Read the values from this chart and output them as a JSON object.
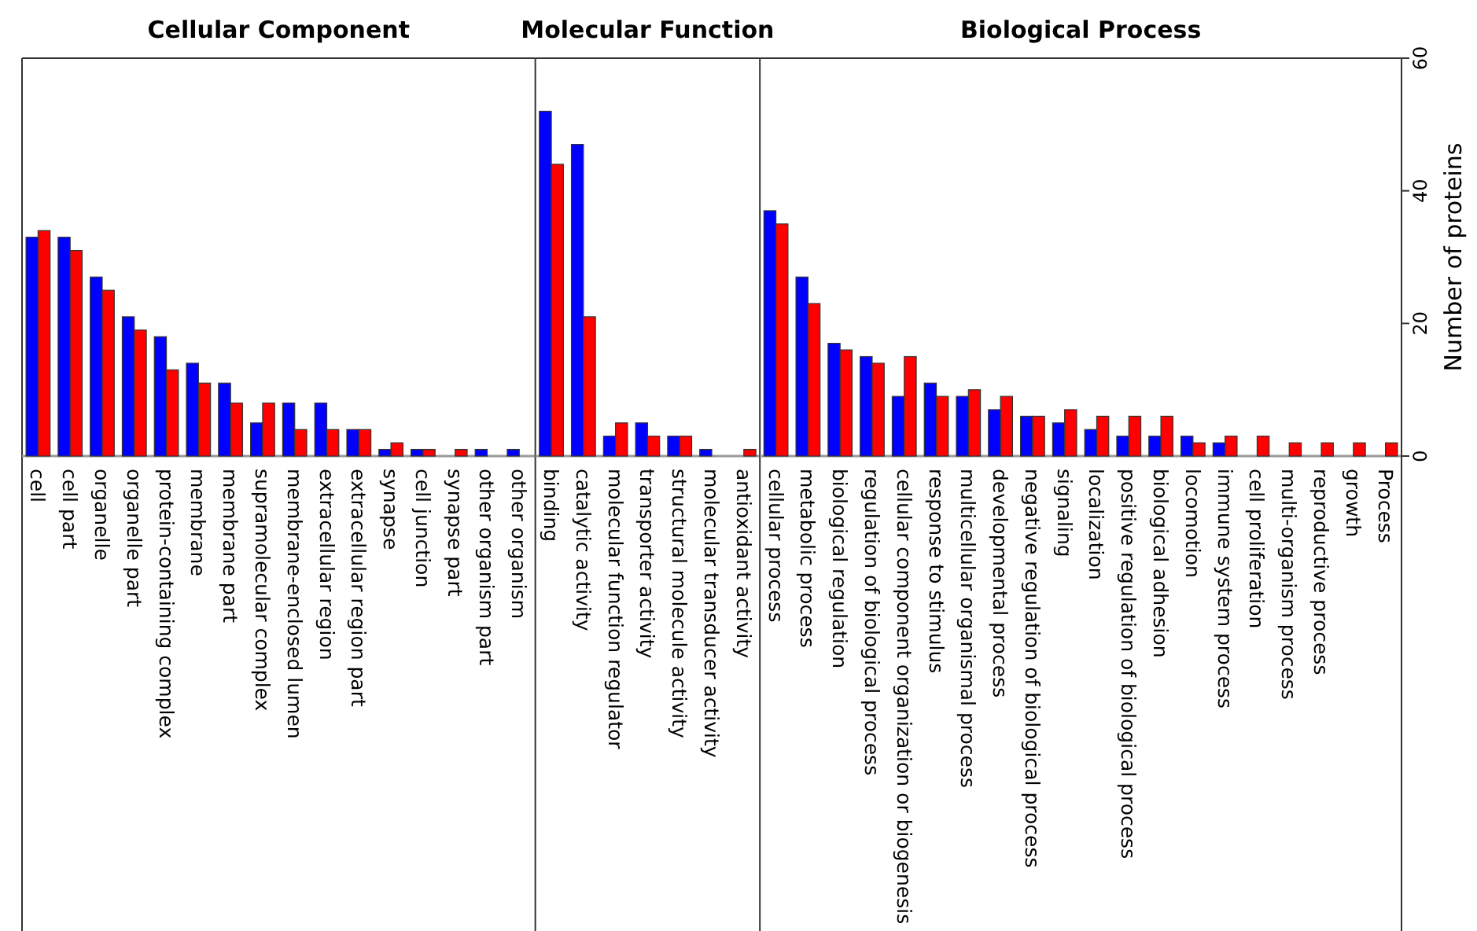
{
  "chart_data": [
    {
      "type": "bar",
      "title": "Cellular Component",
      "categories": [
        "cell",
        "cell part",
        "organelle",
        "organelle part",
        "protein-containing complex",
        "membrane",
        "membrane part",
        "supramolecular complex",
        "membrane-enclosed lumen",
        "extracellular region",
        "extracellular region part",
        "synapse",
        "cell junction",
        "synapse part",
        "other organism part",
        "other organism"
      ],
      "series": [
        {
          "color": "#0000ff",
          "values": [
            33,
            33,
            27,
            21,
            18,
            14,
            11,
            5,
            8,
            8,
            4,
            1,
            1,
            0,
            1,
            1
          ]
        },
        {
          "color": "#ff0000",
          "values": [
            34,
            31,
            25,
            19,
            13,
            11,
            8,
            8,
            4,
            4,
            4,
            2,
            1,
            1,
            0,
            0
          ]
        }
      ],
      "ylim": [
        0,
        60
      ],
      "tick_labels": "x",
      "grid": false
    },
    {
      "type": "bar",
      "title": "Molecular Function",
      "categories": [
        "binding",
        "catalytic activity",
        "molecular function regulator",
        "transporter activity",
        "structural molecule activity",
        "molecular transducer activity",
        "antioxidant activity"
      ],
      "series": [
        {
          "color": "#0000ff",
          "values": [
            52,
            47,
            3,
            5,
            3,
            1,
            0
          ]
        },
        {
          "color": "#ff0000",
          "values": [
            44,
            21,
            5,
            3,
            3,
            0,
            1
          ]
        }
      ],
      "ylim": [
        0,
        60
      ],
      "tick_labels": "x",
      "grid": false
    },
    {
      "type": "bar",
      "title": "Biological Process",
      "ylabel": "Number of proteins",
      "categories": [
        "cellular process",
        "metabolic process",
        "biological regulation",
        "regulation of biological process",
        "cellular component organization or biogenesis",
        "response to stimulus",
        "multicellular organismal process",
        "developmental process",
        "negative regulation of biological process",
        "signaling",
        "localization",
        "positive regulation of biological process",
        "biological adhesion",
        "locomotion",
        "immune system process",
        "cell proliferation",
        "multi-organism process",
        "reproductive process",
        "growth",
        "Process"
      ],
      "series": [
        {
          "color": "#0000ff",
          "values": [
            37,
            27,
            17,
            15,
            9,
            11,
            9,
            7,
            6,
            5,
            4,
            3,
            3,
            3,
            2,
            0,
            0,
            0,
            0,
            0
          ]
        },
        {
          "color": "#ff0000",
          "values": [
            35,
            23,
            16,
            14,
            15,
            9,
            10,
            9,
            6,
            7,
            6,
            6,
            6,
            2,
            3,
            3,
            2,
            2,
            2,
            2
          ]
        }
      ],
      "ylim": [
        0,
        60
      ],
      "yticks": [
        0,
        20,
        40,
        60
      ],
      "grid": false
    }
  ]
}
